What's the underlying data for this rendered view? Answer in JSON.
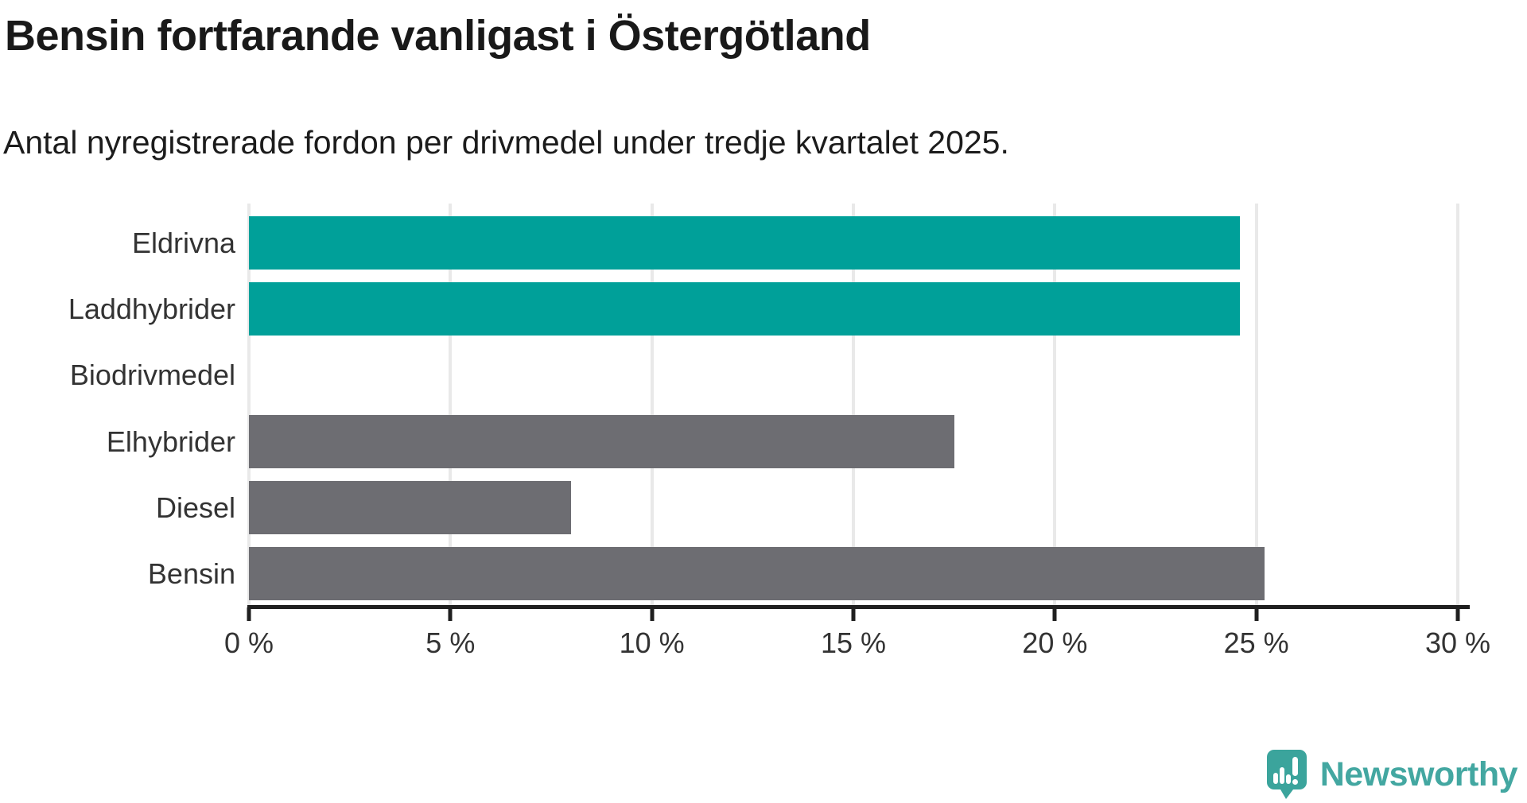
{
  "header": {
    "title": "Bensin fortfarande vanligast i Östergötland",
    "subtitle": "Antal nyregistrerade fordon per drivmedel under tredje kvartalet 2025."
  },
  "chart_data": {
    "type": "bar",
    "orientation": "horizontal",
    "title": "Bensin fortfarande vanligast i Östergötland",
    "subtitle": "Antal nyregistrerade fordon per drivmedel under tredje kvartalet 2025.",
    "categories": [
      "Eldrivna",
      "Laddhybrider",
      "Biodrivmedel",
      "Elhybrider",
      "Diesel",
      "Bensin"
    ],
    "values": [
      24.6,
      24.6,
      0,
      17.5,
      8.0,
      25.2
    ],
    "unit": "%",
    "xlim": [
      0,
      30
    ],
    "x_ticks": [
      0,
      5,
      10,
      15,
      20,
      25,
      30
    ],
    "x_tick_labels": [
      "0 %",
      "5 %",
      "10 %",
      "15 %",
      "20 %",
      "25 %",
      "30 %"
    ],
    "grid": true,
    "legend": "none",
    "highlight_color": "#00a099",
    "default_color": "#6d6d72",
    "bar_colors": [
      "#00a099",
      "#00a099",
      "#6d6d72",
      "#6d6d72",
      "#6d6d72",
      "#6d6d72"
    ]
  },
  "footer": {
    "brand": "Newsworthy",
    "brand_color": "#43a7a1",
    "logo_color": "#3ba49c"
  }
}
